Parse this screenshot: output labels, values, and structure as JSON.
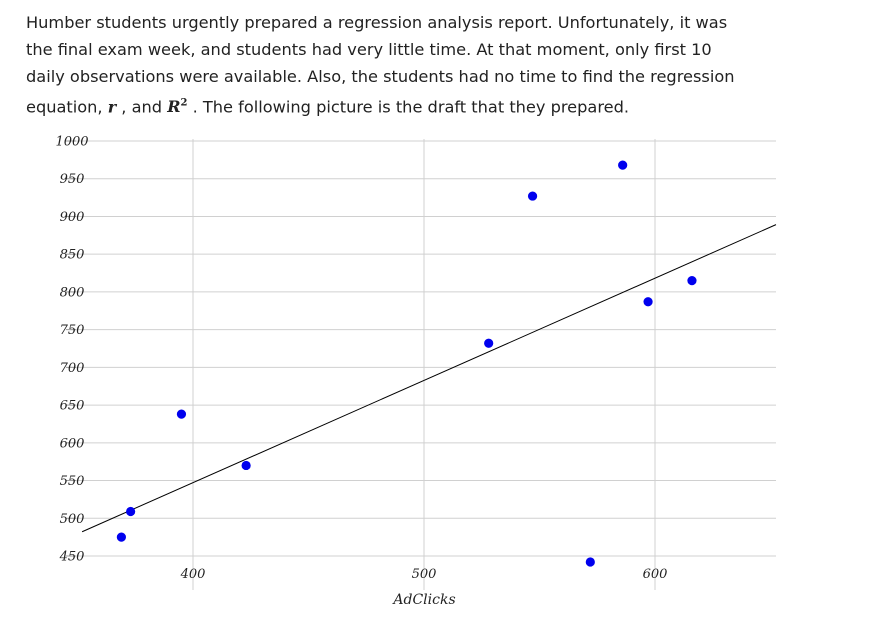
{
  "problem": {
    "line1": "Humber students urgently prepared a regression analysis report. Unfortunately, it was",
    "line2": "the final exam week, and students had very little time. At that moment, only first 10",
    "line3": "daily observations were available. Also, the students had no time to find the regression",
    "line4_a": "equation, ",
    "var_r": "r",
    "line4_b": " , and ",
    "var_R": "R",
    "var_R_sup": "2",
    "line4_c": " . The following picture is the draft that they prepared."
  },
  "colors": {
    "point": "#0000ee",
    "line": "#000000",
    "grid": "#d0d0d0",
    "text": "#222222"
  },
  "chart_data": {
    "type": "scatter",
    "title": "",
    "xlabel": "AdClicks",
    "ylabel": "",
    "xlim": [
      350,
      655
    ],
    "ylim": [
      440,
      1000
    ],
    "x_ticks": [
      400,
      500,
      600
    ],
    "x_tick_labels": [
      "400",
      "500",
      "600"
    ],
    "y_ticks": [
      450,
      500,
      550,
      600,
      650,
      700,
      750,
      800,
      850,
      900,
      950,
      1000
    ],
    "y_tick_labels": [
      "450",
      "500",
      "550",
      "600",
      "650",
      "700",
      "750",
      "800",
      "850",
      "900",
      "950",
      "1000"
    ],
    "grid": true,
    "series": [
      {
        "name": "observations",
        "points": [
          {
            "x": 369,
            "y": 475
          },
          {
            "x": 373,
            "y": 509
          },
          {
            "x": 395,
            "y": 638
          },
          {
            "x": 423,
            "y": 570
          },
          {
            "x": 528,
            "y": 732
          },
          {
            "x": 547,
            "y": 927
          },
          {
            "x": 572,
            "y": 442
          },
          {
            "x": 586,
            "y": 968
          },
          {
            "x": 597,
            "y": 787
          },
          {
            "x": 616,
            "y": 815
          }
        ]
      }
    ],
    "regression_line": {
      "slope": 1.355,
      "intercept": 5.2,
      "x_start": 352,
      "x_end": 655
    }
  }
}
